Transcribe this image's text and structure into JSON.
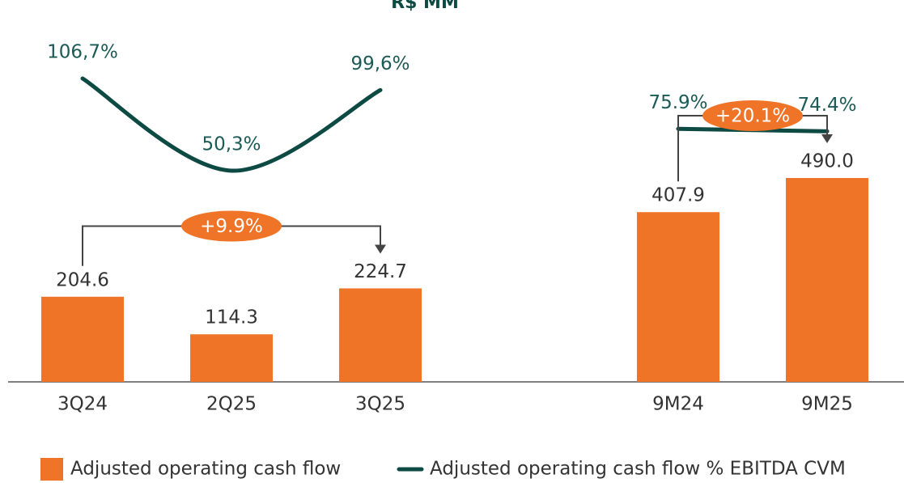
{
  "chart_data": {
    "type": "bar",
    "title": "R$ MM",
    "categories": [
      "3Q24",
      "2Q25",
      "3Q25",
      null,
      "9M24",
      "9M25"
    ],
    "series": [
      {
        "name": "Adjusted operating cash flow",
        "type": "bar",
        "color": "#f07427",
        "values": [
          204.6,
          114.3,
          224.7,
          null,
          407.9,
          490.0
        ],
        "value_labels": [
          "204.6",
          "114.3",
          "224.7",
          null,
          "407.9",
          "490.0"
        ]
      },
      {
        "name": "Adjusted operating cash flow % EBITDA CVM",
        "type": "line",
        "color": "#0d4a43",
        "values": [
          106.7,
          50.3,
          99.6,
          null,
          75.9,
          74.4
        ],
        "value_labels": [
          "106,7%",
          "50,3%",
          "99,6%",
          null,
          "75.9%",
          "74.4%"
        ]
      }
    ],
    "annotations": [
      "+9.9%",
      "+20.1%"
    ]
  }
}
